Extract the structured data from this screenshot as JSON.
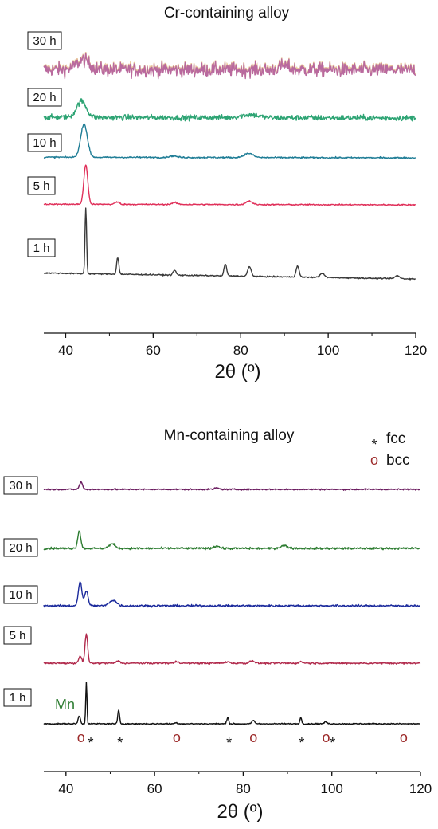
{
  "chart_data": [
    {
      "type": "line",
      "title": "Cr-containing alloy",
      "xlabel": "2θ (º)",
      "ylabel": "",
      "xlim": [
        35,
        120
      ],
      "xticks": [
        40,
        60,
        80,
        100,
        120
      ],
      "y_axis_shown": false,
      "series": [
        {
          "name": "30 h",
          "color": "#b9699e",
          "color2": "#e6c08f",
          "noise": 0.55,
          "slope": 0.05,
          "peaks": [
            [
              44.0,
              0.8,
              1.4
            ],
            [
              90.0,
              0.35,
              1.2
            ]
          ]
        },
        {
          "name": "20 h",
          "color": "#2ea474",
          "noise": 0.22,
          "slope": 0.06,
          "peaks": [
            [
              43.6,
              1.35,
              1.1
            ],
            [
              82.0,
              0.25,
              2.0
            ]
          ]
        },
        {
          "name": "10 h",
          "color": "#1f7d96",
          "noise": 0.06,
          "slope": 0.05,
          "peaks": [
            [
              44.2,
              2.8,
              0.75
            ],
            [
              64.5,
              0.12,
              0.9
            ],
            [
              81.8,
              0.35,
              1.0
            ]
          ]
        },
        {
          "name": "5 h",
          "color": "#e0305a",
          "noise": 0.05,
          "slope": 0.05,
          "peaks": [
            [
              44.6,
              3.3,
              0.45
            ],
            [
              51.8,
              0.2,
              0.5
            ],
            [
              64.9,
              0.15,
              0.6
            ],
            [
              81.9,
              0.3,
              0.7
            ]
          ]
        },
        {
          "name": "1 h",
          "color": "#3a3a3a",
          "noise": 0.05,
          "slope": 0.5,
          "peaks": [
            [
              44.6,
              5.5,
              0.18
            ],
            [
              51.9,
              1.4,
              0.25
            ],
            [
              64.9,
              0.4,
              0.35
            ],
            [
              76.5,
              1.0,
              0.3
            ],
            [
              82.0,
              0.8,
              0.4
            ],
            [
              93.0,
              0.9,
              0.35
            ],
            [
              98.6,
              0.35,
              0.5
            ],
            [
              115.8,
              0.25,
              0.5
            ]
          ]
        }
      ]
    },
    {
      "type": "line",
      "title": "Mn-containing alloy",
      "xlabel": "2θ (º)",
      "ylabel": "",
      "xlim": [
        35,
        120
      ],
      "xticks": [
        40,
        60,
        80,
        100,
        120
      ],
      "y_axis_shown": false,
      "legend": [
        {
          "symbol": "*",
          "label": "fcc"
        },
        {
          "symbol": "o",
          "label": "bcc"
        }
      ],
      "series": [
        {
          "name": "30 h",
          "color": "#6a1b5f",
          "noise": 0.12,
          "slope": 0.0,
          "peaks": [
            [
              43.4,
              1.3,
              0.35
            ],
            [
              74.0,
              0.25,
              0.5
            ]
          ]
        },
        {
          "name": "20 h",
          "color": "#2e7d32",
          "noise": 0.18,
          "slope": 0.0,
          "peaks": [
            [
              43.0,
              3.1,
              0.35
            ],
            [
              50.4,
              0.8,
              0.7
            ],
            [
              74.0,
              0.45,
              0.6
            ],
            [
              89.2,
              0.5,
              0.8
            ]
          ]
        },
        {
          "name": "10 h",
          "color": "#1b2a9c",
          "noise": 0.18,
          "slope": 0.0,
          "peaks": [
            [
              43.2,
              4.2,
              0.4
            ],
            [
              44.6,
              2.6,
              0.4
            ],
            [
              50.6,
              1.0,
              0.8
            ]
          ]
        },
        {
          "name": "5 h",
          "color": "#b12a4c",
          "noise": 0.15,
          "slope": 0.0,
          "peaks": [
            [
              43.2,
              1.2,
              0.35
            ],
            [
              44.6,
              5.2,
              0.3
            ],
            [
              51.8,
              0.4,
              0.4
            ],
            [
              65.0,
              0.3,
              0.5
            ],
            [
              76.5,
              0.3,
              0.4
            ],
            [
              82.0,
              0.5,
              0.5
            ],
            [
              93.0,
              0.25,
              0.5
            ]
          ]
        },
        {
          "name": "1 h",
          "color": "#111111",
          "noise": 0.1,
          "slope": 0.0,
          "peaks": [
            [
              43.0,
              1.4,
              0.25
            ],
            [
              44.6,
              7.5,
              0.14
            ],
            [
              51.9,
              2.5,
              0.2
            ],
            [
              64.9,
              0.2,
              0.3
            ],
            [
              76.5,
              1.2,
              0.2
            ],
            [
              82.3,
              0.6,
              0.3
            ],
            [
              93.0,
              1.1,
              0.2
            ],
            [
              98.6,
              0.35,
              0.3
            ]
          ]
        }
      ],
      "annotations": [
        {
          "text": "Mn",
          "x": 43.0
        }
      ],
      "phase_markers": [
        {
          "symbol": "o",
          "x": 43.4
        },
        {
          "symbol": "*",
          "x": 45.6
        },
        {
          "symbol": "*",
          "x": 52.2
        },
        {
          "symbol": "o",
          "x": 65.0
        },
        {
          "symbol": "*",
          "x": 76.8
        },
        {
          "symbol": "o",
          "x": 82.3
        },
        {
          "symbol": "*",
          "x": 93.2
        },
        {
          "symbol": "o",
          "x": 98.7
        },
        {
          "symbol": "*",
          "x": 100.2
        },
        {
          "symbol": "o",
          "x": 116.2
        }
      ]
    }
  ]
}
